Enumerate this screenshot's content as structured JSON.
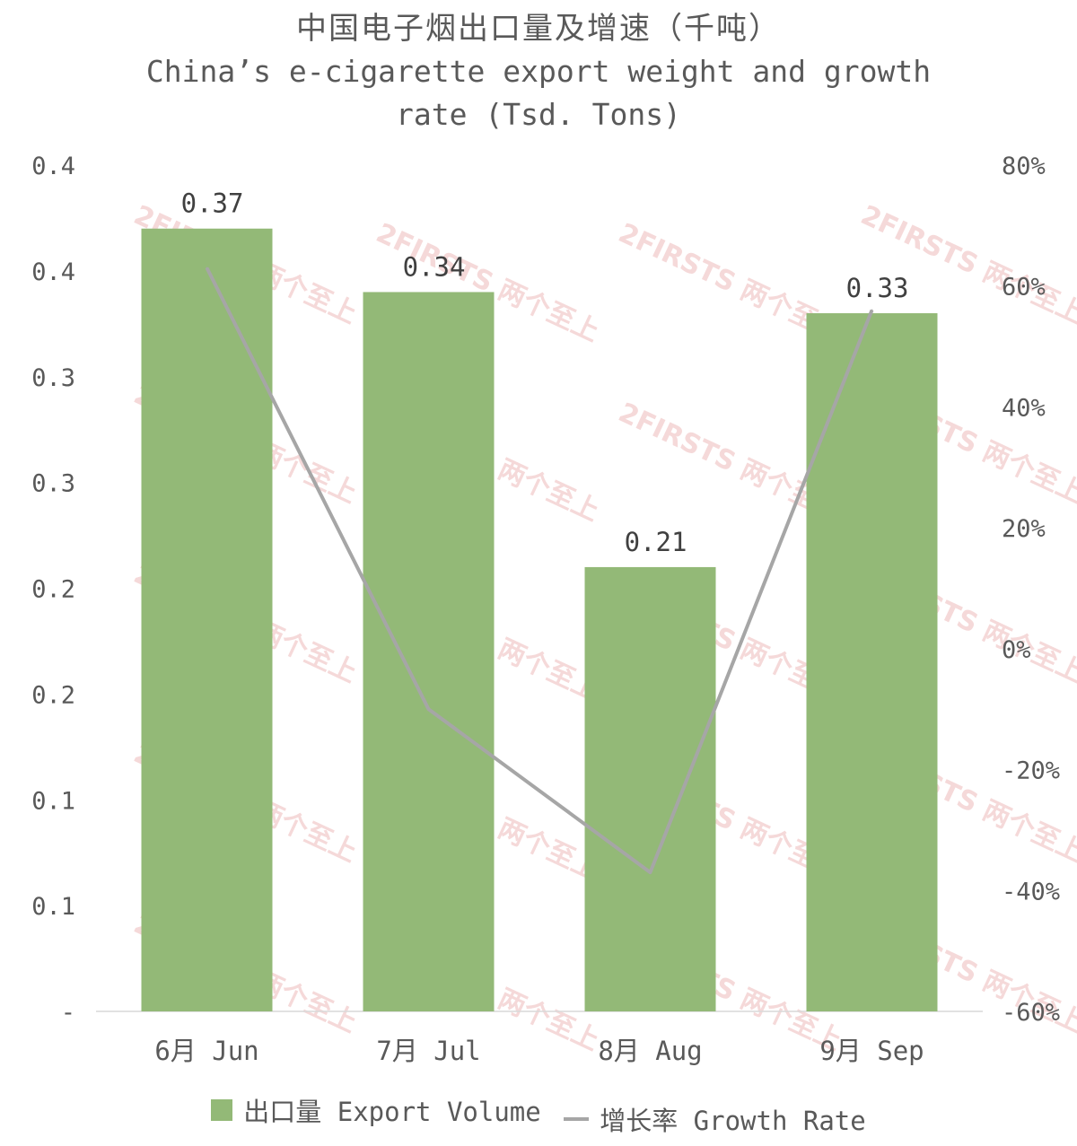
{
  "title_cn": "中国电子烟出口量及增速（千吨）",
  "title_en": "China’s e-cigarette export weight and growth rate (Tsd. Tons)",
  "watermark_text": "2FIRSTS 两个至上",
  "colors": {
    "bar": "#93b977",
    "line": "#a6a6a6",
    "axis": "#d9d9d9"
  },
  "legend": {
    "bar_label": "出口量 Export Volume",
    "line_label": "增长率 Growth Rate"
  },
  "chart_data": {
    "type": "bar+line",
    "categories": [
      "6月 Jun",
      "7月 Jul",
      "8月 Aug",
      "9月 Sep"
    ],
    "series": [
      {
        "name": "出口量 Export Volume",
        "type": "bar",
        "axis": "left",
        "values": [
          0.37,
          0.34,
          0.21,
          0.33
        ],
        "labels": [
          "0.37",
          "0.34",
          "0.21",
          "0.33"
        ]
      },
      {
        "name": "增长率 Growth Rate",
        "type": "line",
        "axis": "right",
        "values": [
          63,
          -10,
          -37,
          56
        ]
      }
    ],
    "y_left": {
      "ylim": [
        0,
        0.4
      ],
      "tick_values": [
        0,
        0.05,
        0.1,
        0.15,
        0.2,
        0.25,
        0.3,
        0.35,
        0.4
      ],
      "tick_labels": [
        "-",
        "0.1",
        "0.1",
        "0.2",
        "0.2",
        "0.3",
        "0.3",
        "0.4",
        "0.4"
      ]
    },
    "y_right": {
      "ylim": [
        -60,
        80
      ],
      "tick_values": [
        -60,
        -40,
        -20,
        0,
        20,
        40,
        60,
        80
      ],
      "tick_labels": [
        "-60%",
        "-40%",
        "-20%",
        "0%",
        "20%",
        "40%",
        "60%",
        "80%"
      ]
    },
    "grid": false,
    "legend_position": "bottom"
  }
}
